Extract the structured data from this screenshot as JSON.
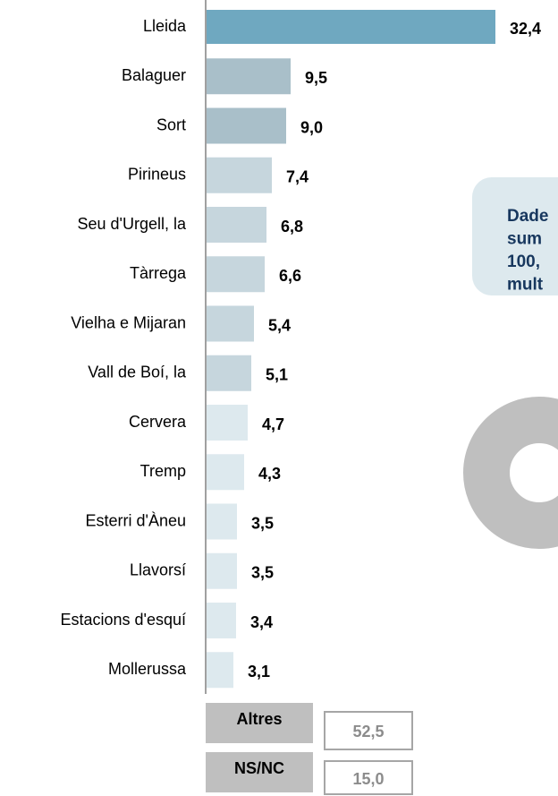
{
  "chart_data": {
    "type": "barh",
    "categories": [
      "Lleida",
      "Balaguer",
      "Sort",
      "Pirineus",
      "Seu d'Urgell, la",
      "Tàrrega",
      "Vielha e Mijaran",
      "Vall de Boí, la",
      "Cervera",
      "Tremp",
      "Esterri d'Àneu",
      "Llavorsí",
      "Estacions d'esquí",
      "Mollerussa"
    ],
    "values": [
      32.4,
      9.5,
      9.0,
      7.4,
      6.8,
      6.6,
      5.4,
      5.1,
      4.7,
      4.3,
      3.5,
      3.5,
      3.4,
      3.1
    ],
    "value_labels": [
      "32,4",
      "9,5",
      "9,0",
      "7,4",
      "6,8",
      "6,6",
      "5,4",
      "5,1",
      "4,7",
      "4,3",
      "3,5",
      "3,5",
      "3,4",
      "3,1"
    ],
    "colors": [
      "#6fa8c0",
      "#a9bfc9",
      "#a9bfc9",
      "#c6d6dd",
      "#c6d6dd",
      "#c6d6dd",
      "#c6d6dd",
      "#c6d6dd",
      "#dde9ee",
      "#dde9ee",
      "#dde9ee",
      "#dde9ee",
      "#dde9ee",
      "#dde9ee"
    ],
    "note": [
      "Dade",
      "sum",
      "100,",
      "mult"
    ],
    "others": [
      {
        "label": "Altres",
        "value": "52,5"
      },
      {
        "label": "NS/NC",
        "value": "15,0"
      }
    ]
  }
}
